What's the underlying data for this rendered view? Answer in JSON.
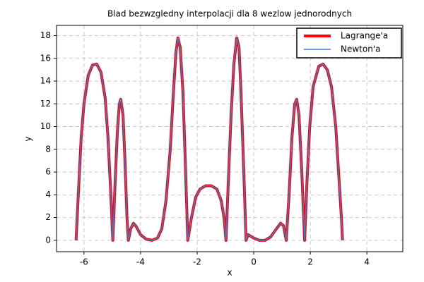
{
  "chart_data": {
    "type": "line",
    "title": "Blad bezwzgledny interpolacji dla 8 wezlow jednorodnych",
    "xlabel": "x",
    "ylabel": "y",
    "x": [
      -6.28,
      -6.2,
      -6.1,
      -6.0,
      -5.85,
      -5.7,
      -5.55,
      -5.4,
      -5.25,
      -5.15,
      -5.05,
      -4.98,
      -4.9,
      -4.82,
      -4.75,
      -4.7,
      -4.62,
      -4.55,
      -4.48,
      -4.43,
      -4.35,
      -4.25,
      -4.15,
      -4.0,
      -3.8,
      -3.6,
      -3.4,
      -3.25,
      -3.1,
      -2.95,
      -2.85,
      -2.75,
      -2.68,
      -2.6,
      -2.5,
      -2.42,
      -2.33,
      -2.2,
      -2.05,
      -1.9,
      -1.7,
      -1.5,
      -1.3,
      -1.15,
      -1.05,
      -0.98,
      -0.9,
      -0.8,
      -0.7,
      -0.6,
      -0.52,
      -0.45,
      -0.35,
      -0.27,
      -0.2,
      0,
      0.2,
      0.4,
      0.6,
      0.8,
      0.95,
      1.05,
      1.15,
      1.25,
      1.35,
      1.45,
      1.52,
      1.6,
      1.7,
      1.8,
      1.88,
      1.98,
      2.1,
      2.3,
      2.45,
      2.6,
      2.75,
      2.9,
      3.0,
      3.1,
      3.14
    ],
    "series": [
      {
        "name": "Lagrange'a",
        "color": "#ff0000",
        "values": [
          0,
          4,
          9,
          12,
          14.5,
          15.4,
          15.5,
          14.8,
          12.5,
          9,
          4,
          0,
          5,
          9.5,
          12,
          12.4,
          11,
          7,
          2,
          0,
          1.0,
          1.5,
          1.2,
          0.5,
          0.1,
          0,
          0.2,
          1.0,
          3.5,
          8,
          12.5,
          16.5,
          17.8,
          17,
          13,
          7,
          0,
          2,
          3.8,
          4.5,
          4.8,
          4.8,
          4.5,
          3.5,
          2,
          0,
          5,
          11,
          15.5,
          17.8,
          17,
          13,
          6,
          0,
          0.5,
          0.2,
          0,
          0,
          0.3,
          1,
          1.5,
          1.3,
          0,
          4,
          9,
          12,
          12.4,
          11,
          6,
          0,
          5,
          10,
          13.5,
          15.3,
          15.5,
          15,
          13.5,
          10,
          6,
          2,
          0
        ]
      },
      {
        "name": "Newton'a",
        "color": "#3a7fd5",
        "values": [
          0,
          4,
          9,
          12,
          14.5,
          15.4,
          15.5,
          14.8,
          12.5,
          9,
          4,
          0,
          5,
          9.5,
          12,
          12.4,
          11,
          7,
          2,
          0,
          1.0,
          1.5,
          1.2,
          0.5,
          0.1,
          0,
          0.2,
          1.0,
          3.5,
          8,
          12.5,
          16.5,
          17.8,
          17,
          13,
          7,
          0,
          2,
          3.8,
          4.5,
          4.8,
          4.8,
          4.5,
          3.5,
          2,
          0,
          5,
          11,
          15.5,
          17.8,
          17,
          13,
          6,
          0,
          0.5,
          0.2,
          0,
          0,
          0.3,
          1,
          1.5,
          1.3,
          0,
          4,
          9,
          12,
          12.4,
          11,
          6,
          0,
          5,
          10,
          13.5,
          15.3,
          15.5,
          15,
          13.5,
          10,
          6,
          2,
          0
        ]
      }
    ],
    "xlim": [
      -6.97,
      5.27
    ],
    "ylim": [
      -1,
      18.9
    ],
    "xticks": [
      -6,
      -4,
      -2,
      0,
      2,
      4
    ],
    "yticks": [
      0,
      2,
      4,
      6,
      8,
      10,
      12,
      14,
      16,
      18
    ],
    "grid": true,
    "legend": "upper right"
  }
}
